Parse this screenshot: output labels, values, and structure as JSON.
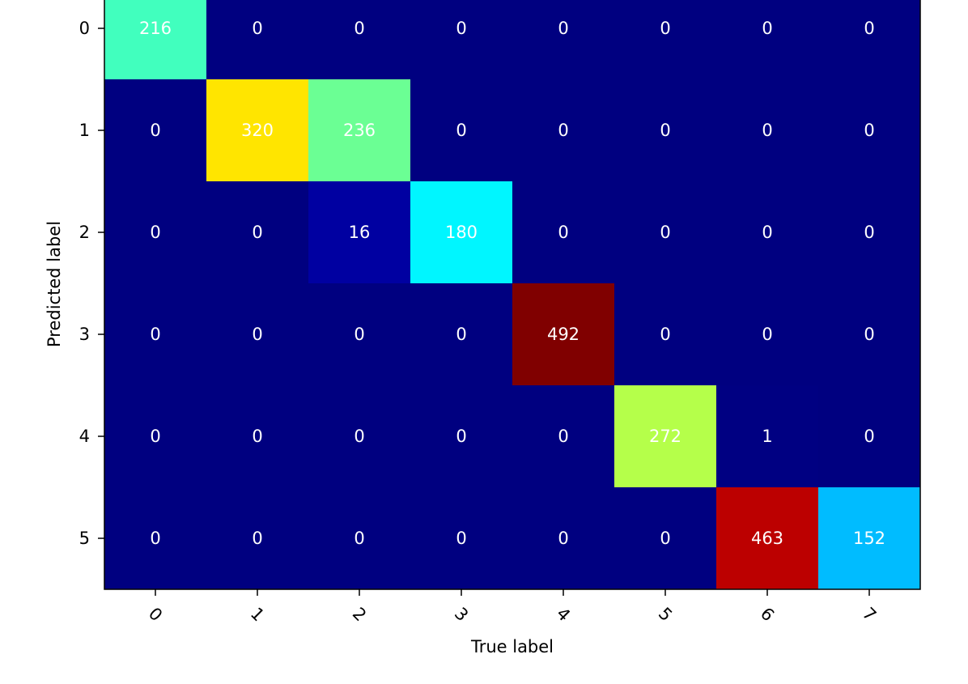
{
  "chart_data": {
    "type": "heatmap",
    "title": "",
    "xlabel": "True label",
    "ylabel": "Predicted label",
    "x_ticks": [
      "0",
      "1",
      "2",
      "3",
      "4",
      "5",
      "6",
      "7"
    ],
    "y_ticks": [
      "0",
      "1",
      "2",
      "3",
      "4",
      "5"
    ],
    "values": [
      [
        216,
        0,
        0,
        0,
        0,
        0,
        0,
        0
      ],
      [
        0,
        320,
        236,
        0,
        0,
        0,
        0,
        0
      ],
      [
        0,
        0,
        16,
        180,
        0,
        0,
        0,
        0
      ],
      [
        0,
        0,
        0,
        0,
        492,
        0,
        0,
        0
      ],
      [
        0,
        0,
        0,
        0,
        0,
        272,
        1,
        0
      ],
      [
        0,
        0,
        0,
        0,
        0,
        0,
        463,
        152
      ]
    ],
    "colormap": "jet",
    "value_range": [
      0,
      492
    ],
    "annotation_color": "#ffffff",
    "axis_text_color": "#000000"
  }
}
